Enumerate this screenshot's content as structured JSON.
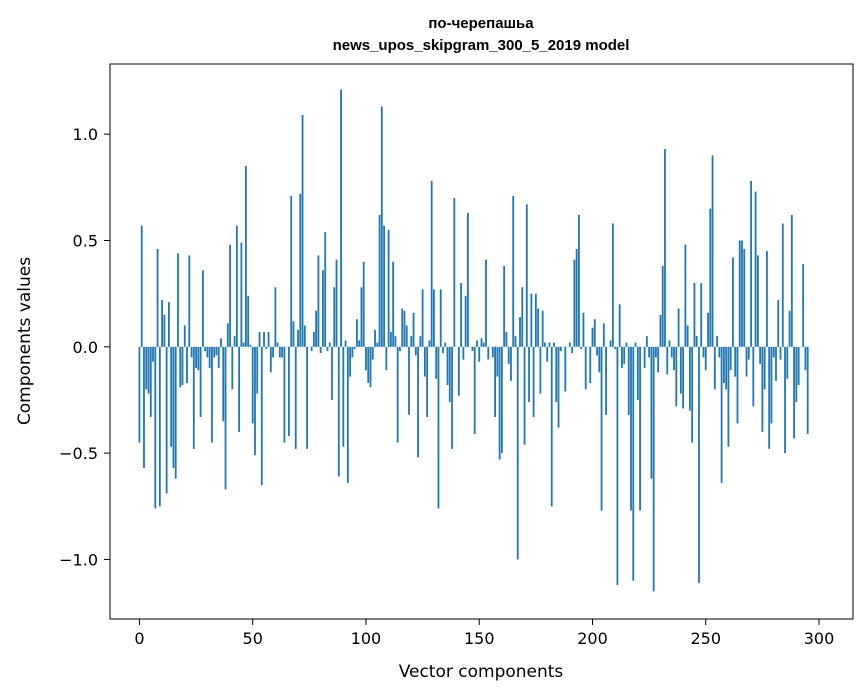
{
  "chart_data": {
    "type": "bar",
    "title_lines": [
      "по-черепашьа",
      "news_upos_skipgram_300_5_2019 model"
    ],
    "xlabel": "Vector components",
    "ylabel": "Components values",
    "xlim": [
      -13,
      315
    ],
    "ylim": [
      -1.28,
      1.33
    ],
    "x_ticks": [
      0,
      50,
      100,
      150,
      200,
      250,
      300
    ],
    "x_tick_labels": [
      "0",
      "50",
      "100",
      "150",
      "200",
      "250",
      "300"
    ],
    "y_ticks": [
      1.0,
      0.5,
      0.0,
      -0.5,
      -1.0
    ],
    "y_tick_labels": [
      "1.0",
      "0.5",
      "0.0",
      "−0.5",
      "−1.0"
    ],
    "bar_color": "#1f77b4",
    "values": [
      -0.45,
      0.57,
      -0.57,
      -0.2,
      -0.22,
      -0.33,
      -0.07,
      -0.76,
      0.46,
      -0.75,
      0.22,
      0.15,
      -0.69,
      0.21,
      -0.47,
      -0.57,
      -0.62,
      0.44,
      -0.19,
      -0.18,
      0.1,
      -0.17,
      0.43,
      -0.05,
      -0.48,
      -0.1,
      -0.11,
      -0.33,
      0.36,
      -0.02,
      -0.05,
      -0.1,
      -0.45,
      -0.05,
      -0.04,
      -0.1,
      0.04,
      -0.35,
      -0.67,
      0.11,
      0.48,
      -0.2,
      0.05,
      0.57,
      -0.4,
      0.49,
      0.02,
      0.85,
      0.24,
      0.01,
      -0.36,
      -0.51,
      -0.22,
      0.07,
      -0.65,
      0.07,
      -0.01,
      0.07,
      -0.12,
      -0.05,
      0.28,
      0.02,
      -0.05,
      -0.05,
      -0.45,
      0.0,
      -0.42,
      0.71,
      0.12,
      -0.48,
      0.08,
      0.72,
      1.09,
      0.1,
      -0.48,
      0.0,
      -0.02,
      0.07,
      0.17,
      0.43,
      -0.03,
      0.36,
      0.54,
      -0.02,
      0.02,
      -0.25,
      0.28,
      0.41,
      -0.61,
      1.21,
      -0.47,
      0.03,
      -0.64,
      -0.14,
      -0.05,
      -0.01,
      0.13,
      0.03,
      0.28,
      0.4,
      -0.11,
      -0.17,
      -0.19,
      -0.06,
      0.08,
      0.02,
      0.62,
      1.13,
      0.57,
      -0.11,
      0.55,
      0.07,
      0.4,
      0.05,
      -0.45,
      -0.02,
      0.18,
      0.17,
      0.1,
      -0.32,
      0.05,
      0.16,
      -0.04,
      -0.52,
      0.05,
      0.27,
      -0.14,
      -0.33,
      0.03,
      0.78,
      0.27,
      -0.15,
      -0.76,
      0.27,
      -0.03,
      0.02,
      -0.18,
      -0.26,
      -0.48,
      0.7,
      0.0,
      -0.23,
      0.3,
      -0.06,
      0.24,
      0.63,
      0.0,
      -0.02,
      -0.41,
      0.03,
      -0.07,
      0.04,
      0.02,
      0.41,
      -0.06,
      0.0,
      -0.05,
      -0.33,
      -0.14,
      -0.53,
      -0.5,
      0.38,
      0.07,
      -0.08,
      -0.16,
      0.71,
      0.05,
      -1.0,
      0.14,
      0.28,
      -0.46,
      0.67,
      -0.26,
      0.25,
      -0.33,
      0.25,
      0.18,
      -0.22,
      0.17,
      0.02,
      -0.07,
      0.02,
      -0.75,
      0.02,
      -0.26,
      -0.38,
      -0.02,
      0.0,
      -0.21,
      0.0,
      0.02,
      -0.03,
      0.41,
      0.46,
      0.62,
      -0.01,
      0.16,
      -0.2,
      0.0,
      -0.17,
      0.09,
      0.13,
      -0.04,
      -0.12,
      -0.77,
      0.11,
      -0.32,
      0.0,
      0.03,
      0.58,
      -0.01,
      -1.12,
      0.2,
      -0.1,
      -0.08,
      0.02,
      -0.32,
      -0.77,
      -1.1,
      0.02,
      -0.25,
      -0.77,
      0.0,
      -0.1,
      0.05,
      -0.05,
      -0.62,
      -1.15,
      -0.05,
      -0.12,
      0.15,
      0.38,
      0.93,
      -0.13,
      0.03,
      -0.05,
      -0.11,
      -0.28,
      0.18,
      -0.22,
      -0.29,
      0.48,
      0.1,
      -0.3,
      -0.45,
      0.3,
      0.05,
      -1.11,
      0.3,
      -0.05,
      -0.11,
      0.16,
      0.65,
      0.9,
      -0.2,
      0.05,
      -0.05,
      -0.64,
      -0.17,
      -0.2,
      -0.47,
      -0.11,
      0.42,
      -0.14,
      -0.36,
      0.5,
      0.5,
      0.46,
      -0.14,
      -0.06,
      0.78,
      -0.28,
      0.73,
      0.43,
      -0.08,
      -0.4,
      -0.2,
      0.45,
      -0.48,
      -0.36,
      -0.05,
      -0.16,
      0.22,
      -0.06,
      0.58,
      -0.5,
      -0.15,
      0.17,
      0.62,
      -0.43,
      -0.26,
      -0.18,
      0.0,
      0.39,
      -0.11,
      -0.41
    ]
  }
}
